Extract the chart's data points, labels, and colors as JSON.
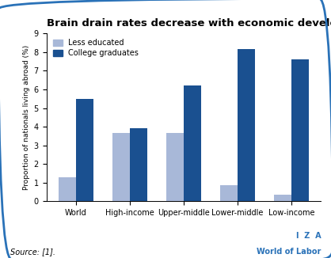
{
  "title": "Brain drain rates decrease with economic development",
  "categories": [
    "World",
    "High-income",
    "Upper-middle",
    "Lower-middle",
    "Low-income"
  ],
  "less_educated": [
    1.3,
    3.65,
    3.65,
    0.85,
    0.35
  ],
  "college_graduates": [
    5.5,
    3.9,
    6.2,
    8.15,
    7.6
  ],
  "color_less": "#a8b8d8",
  "color_college": "#1a5090",
  "ylabel": "Proportion of nationals living abroad (%)",
  "ylim": [
    0,
    9
  ],
  "yticks": [
    0,
    1,
    2,
    3,
    4,
    5,
    6,
    7,
    8,
    9
  ],
  "legend_labels": [
    "Less educated",
    "College graduates"
  ],
  "source_text": "Source: [1].",
  "iza_line1": "I  Z  A",
  "iza_line2": "World of Labor",
  "bar_width": 0.32,
  "border_color": "#2a72b8",
  "background_color": "#ffffff"
}
